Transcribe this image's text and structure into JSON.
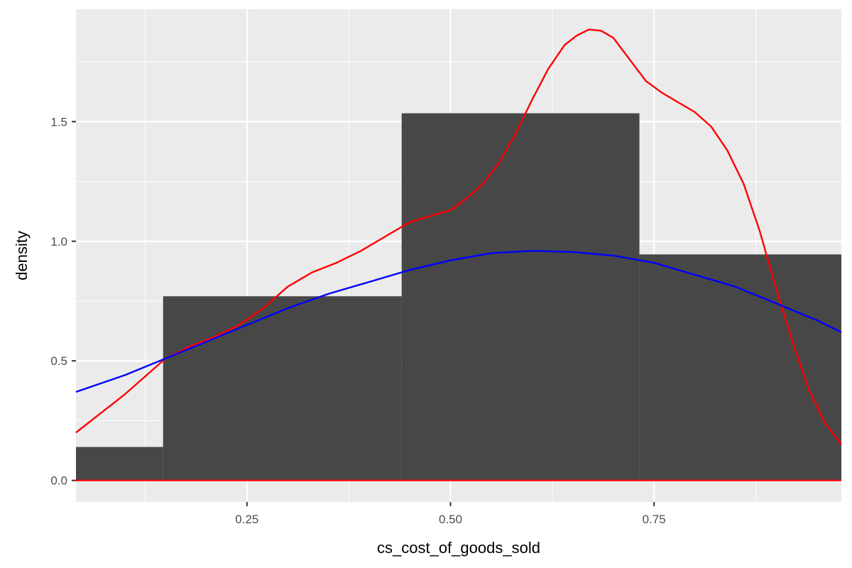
{
  "chart_data": {
    "type": "histogram",
    "xlabel": "cs_cost_of_goods_sold",
    "ylabel": "density",
    "xlim": [
      0.04,
      0.98
    ],
    "ylim": [
      -0.09,
      1.97
    ],
    "x_ticks": [
      0.25,
      0.5,
      0.75
    ],
    "x_tick_labels": [
      "0.25",
      "0.50",
      "0.75"
    ],
    "y_ticks": [
      0.0,
      0.5,
      1.0,
      1.5
    ],
    "y_tick_labels": [
      "0.0",
      "0.5",
      "1.0",
      "1.5"
    ],
    "grid": true,
    "bars": [
      {
        "x0": 0.04,
        "x1": 0.147,
        "density": 0.14
      },
      {
        "x0": 0.147,
        "x1": 0.44,
        "density": 0.77
      },
      {
        "x0": 0.44,
        "x1": 0.732,
        "density": 1.535
      },
      {
        "x0": 0.732,
        "x1": 0.98,
        "density": 0.945
      }
    ],
    "series": [
      {
        "kind": "density",
        "color": "#ff0000",
        "x": [
          0.04,
          0.07,
          0.1,
          0.13,
          0.15,
          0.18,
          0.21,
          0.24,
          0.27,
          0.3,
          0.33,
          0.36,
          0.39,
          0.42,
          0.45,
          0.48,
          0.5,
          0.52,
          0.54,
          0.56,
          0.58,
          0.6,
          0.62,
          0.64,
          0.655,
          0.67,
          0.685,
          0.7,
          0.72,
          0.74,
          0.76,
          0.78,
          0.8,
          0.82,
          0.84,
          0.86,
          0.88,
          0.9,
          0.92,
          0.94,
          0.96,
          0.98
        ],
        "y": [
          0.2,
          0.28,
          0.36,
          0.45,
          0.51,
          0.56,
          0.6,
          0.65,
          0.72,
          0.81,
          0.87,
          0.91,
          0.96,
          1.02,
          1.08,
          1.11,
          1.13,
          1.18,
          1.24,
          1.33,
          1.45,
          1.59,
          1.72,
          1.82,
          1.86,
          1.885,
          1.88,
          1.85,
          1.76,
          1.67,
          1.62,
          1.58,
          1.54,
          1.48,
          1.38,
          1.24,
          1.04,
          0.8,
          0.58,
          0.38,
          0.24,
          0.15
        ]
      },
      {
        "kind": "normal",
        "color": "#0000ff",
        "x": [
          0.04,
          0.1,
          0.15,
          0.2,
          0.25,
          0.3,
          0.35,
          0.4,
          0.45,
          0.5,
          0.55,
          0.6,
          0.65,
          0.7,
          0.75,
          0.8,
          0.85,
          0.9,
          0.95,
          0.98
        ],
        "y": [
          0.37,
          0.44,
          0.51,
          0.58,
          0.65,
          0.72,
          0.78,
          0.83,
          0.88,
          0.92,
          0.95,
          0.96,
          0.955,
          0.94,
          0.91,
          0.86,
          0.81,
          0.74,
          0.67,
          0.62
        ]
      }
    ]
  }
}
